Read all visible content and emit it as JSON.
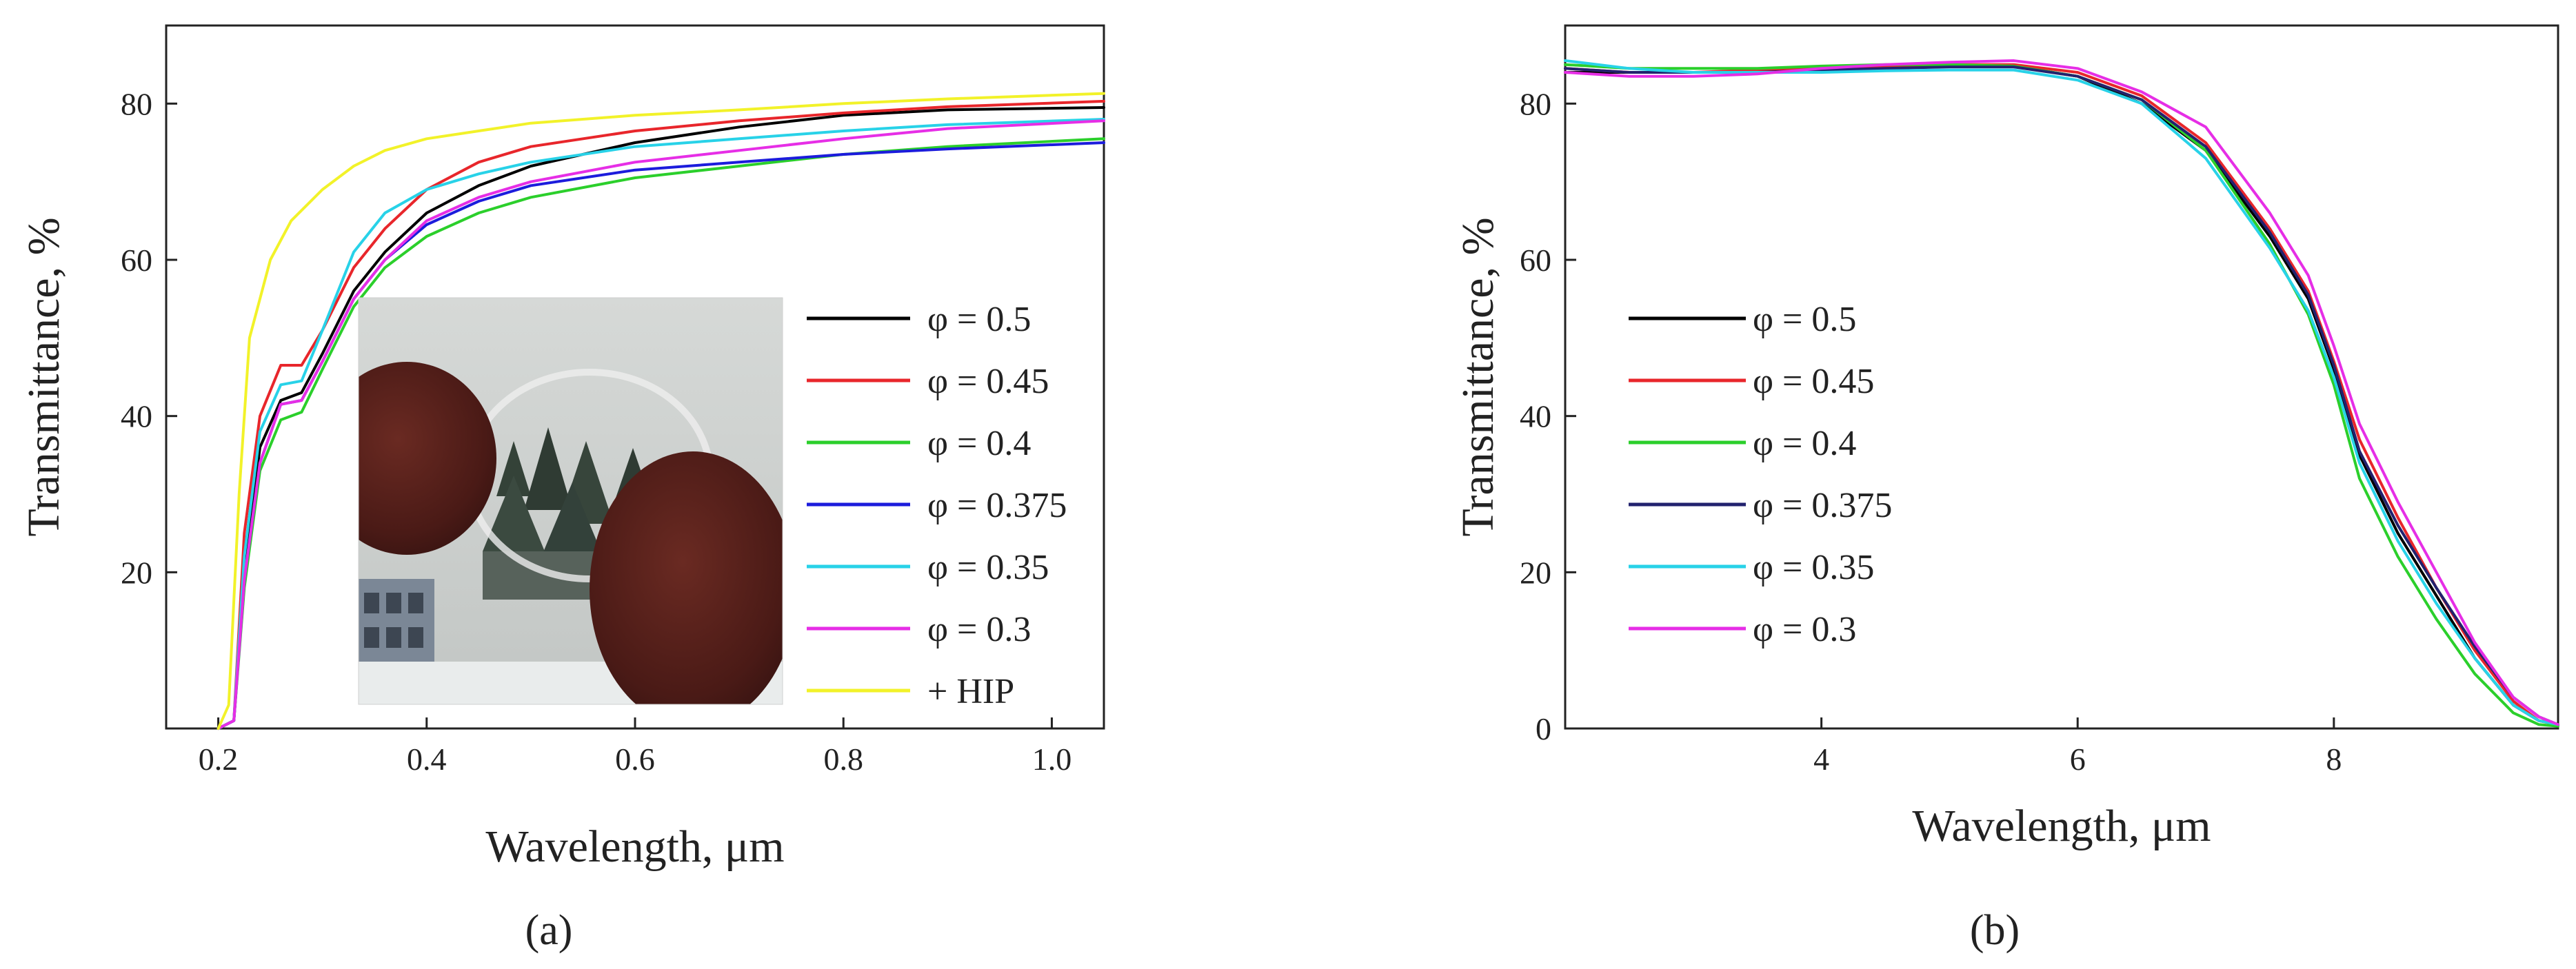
{
  "figure": {
    "panel_a_label": "(a)",
    "panel_b_label": "(b)",
    "inset_photo": "photo of transparent ceramic disc held between fingers, snowy fir trees behind"
  },
  "chart_data": [
    {
      "type": "line",
      "panel": "a",
      "title": "",
      "xlabel": "Wavelength, μm",
      "ylabel": "Transmittance, %",
      "xlim": [
        0.15,
        1.05
      ],
      "ylim": [
        0,
        90
      ],
      "xticks": [
        0.2,
        0.4,
        0.6,
        0.8,
        1.0
      ],
      "xtick_labels": [
        "0.2",
        "0.4",
        "0.6",
        "0.8",
        "1.0"
      ],
      "yticks": [
        20,
        40,
        60,
        80
      ],
      "ytick_labels": [
        "20",
        "40",
        "60",
        "80"
      ],
      "legend_position": "center-right",
      "series": [
        {
          "name": "φ = 0.5",
          "color": "#000000",
          "x": [
            0.2,
            0.215,
            0.225,
            0.24,
            0.26,
            0.28,
            0.3,
            0.33,
            0.36,
            0.4,
            0.45,
            0.5,
            0.6,
            0.7,
            0.8,
            0.9,
            1.05
          ],
          "y": [
            0,
            1,
            20,
            36,
            42,
            43,
            48,
            56,
            61,
            66,
            69.5,
            72,
            75,
            77,
            78.5,
            79.2,
            79.5
          ]
        },
        {
          "name": "φ = 0.45",
          "color": "#e8262b",
          "x": [
            0.2,
            0.215,
            0.225,
            0.24,
            0.26,
            0.28,
            0.3,
            0.33,
            0.36,
            0.4,
            0.45,
            0.5,
            0.6,
            0.7,
            0.8,
            0.9,
            1.05
          ],
          "y": [
            0,
            1,
            25,
            40,
            46.5,
            46.5,
            51,
            59,
            64,
            69,
            72.5,
            74.5,
            76.5,
            77.8,
            78.8,
            79.6,
            80.3
          ]
        },
        {
          "name": "φ = 0.4",
          "color": "#2bcf2b",
          "x": [
            0.2,
            0.215,
            0.225,
            0.24,
            0.26,
            0.28,
            0.3,
            0.33,
            0.36,
            0.4,
            0.45,
            0.5,
            0.6,
            0.7,
            0.8,
            0.9,
            1.05
          ],
          "y": [
            0,
            1,
            18,
            33,
            39.5,
            40.5,
            46,
            54,
            59,
            63,
            66,
            68,
            70.5,
            72,
            73.5,
            74.5,
            75.5
          ]
        },
        {
          "name": "φ = 0.375",
          "color": "#1c1cdc",
          "x": [
            0.2,
            0.215,
            0.225,
            0.24,
            0.26,
            0.28,
            0.3,
            0.33,
            0.36,
            0.4,
            0.45,
            0.5,
            0.6,
            0.7,
            0.8,
            0.9,
            1.05
          ],
          "y": [
            0,
            1,
            19,
            34,
            41.5,
            42,
            47,
            55,
            60,
            64.5,
            67.5,
            69.5,
            71.5,
            72.5,
            73.5,
            74.2,
            75.0
          ]
        },
        {
          "name": "φ = 0.35",
          "color": "#28d2e8",
          "x": [
            0.2,
            0.215,
            0.225,
            0.24,
            0.26,
            0.28,
            0.3,
            0.33,
            0.36,
            0.4,
            0.45,
            0.5,
            0.6,
            0.7,
            0.8,
            0.9,
            1.05
          ],
          "y": [
            0,
            1,
            22,
            38,
            44,
            44.5,
            51,
            61,
            66,
            69,
            71,
            72.5,
            74.5,
            75.5,
            76.5,
            77.3,
            78.0
          ]
        },
        {
          "name": "φ = 0.3",
          "color": "#e62ee6",
          "x": [
            0.2,
            0.215,
            0.225,
            0.24,
            0.26,
            0.28,
            0.3,
            0.33,
            0.36,
            0.4,
            0.45,
            0.5,
            0.6,
            0.7,
            0.8,
            0.9,
            1.05
          ],
          "y": [
            0,
            1,
            19,
            34,
            41.5,
            42,
            47,
            55,
            60,
            65,
            68,
            70,
            72.5,
            74,
            75.5,
            76.8,
            77.8
          ]
        },
        {
          "name": "+ HIP",
          "color": "#f2f229",
          "x": [
            0.2,
            0.21,
            0.22,
            0.23,
            0.25,
            0.27,
            0.3,
            0.33,
            0.36,
            0.4,
            0.45,
            0.5,
            0.6,
            0.7,
            0.8,
            0.9,
            1.05
          ],
          "y": [
            0,
            3,
            30,
            50,
            60,
            65,
            69,
            72,
            74,
            75.5,
            76.5,
            77.5,
            78.5,
            79.2,
            80,
            80.6,
            81.3
          ]
        }
      ]
    },
    {
      "type": "line",
      "panel": "b",
      "title": "",
      "xlabel": "Wavelength, μm",
      "ylabel": "Transmittance, %",
      "xlim": [
        2.0,
        9.75
      ],
      "ylim": [
        0,
        90
      ],
      "xticks": [
        4,
        6,
        8
      ],
      "xtick_labels": [
        "4",
        "6",
        "8"
      ],
      "yticks": [
        0,
        20,
        40,
        60,
        80
      ],
      "ytick_labels": [
        "0",
        "20",
        "40",
        "60",
        "80"
      ],
      "legend_position": "center-left",
      "series": [
        {
          "name": "φ = 0.5",
          "color": "#000000",
          "x": [
            2.0,
            2.5,
            3.0,
            3.5,
            4.0,
            4.5,
            5.0,
            5.5,
            6.0,
            6.5,
            7.0,
            7.5,
            7.8,
            8.0,
            8.2,
            8.5,
            8.8,
            9.1,
            9.4,
            9.6,
            9.75
          ],
          "y": [
            84,
            84,
            84,
            84,
            84.5,
            84.5,
            84.8,
            84.8,
            83.5,
            80,
            74,
            63,
            55,
            46,
            35,
            25,
            17,
            9,
            3,
            1,
            0.5
          ]
        },
        {
          "name": "φ = 0.45",
          "color": "#e8262b",
          "x": [
            2.0,
            2.5,
            3.0,
            3.5,
            4.0,
            4.5,
            5.0,
            5.5,
            6.0,
            6.5,
            7.0,
            7.5,
            7.8,
            8.0,
            8.2,
            8.5,
            8.8,
            9.1,
            9.4,
            9.6,
            9.75
          ],
          "y": [
            84.5,
            84,
            84,
            84.3,
            84.5,
            84.8,
            85,
            85,
            84,
            81,
            75,
            64,
            56,
            47,
            37,
            27,
            18,
            10,
            3.5,
            1,
            0.5
          ]
        },
        {
          "name": "φ = 0.4",
          "color": "#2bcf2b",
          "x": [
            2.0,
            2.5,
            3.0,
            3.5,
            4.0,
            4.5,
            5.0,
            5.5,
            6.0,
            6.5,
            7.0,
            7.5,
            7.8,
            8.0,
            8.2,
            8.5,
            8.8,
            9.1,
            9.4,
            9.6,
            9.75
          ],
          "y": [
            85,
            84.5,
            84.5,
            84.5,
            84.8,
            85,
            85,
            84.8,
            83.5,
            80.5,
            74,
            62,
            53,
            44,
            32,
            22,
            14,
            7,
            2,
            0.5,
            0.3
          ]
        },
        {
          "name": "φ = 0.375",
          "color": "#22226e",
          "x": [
            2.0,
            2.5,
            3.0,
            3.5,
            4.0,
            4.5,
            5.0,
            5.5,
            6.0,
            6.5,
            7.0,
            7.5,
            7.8,
            8.0,
            8.2,
            8.5,
            8.8,
            9.1,
            9.4,
            9.6,
            9.75
          ],
          "y": [
            84.5,
            84,
            84,
            84,
            84.3,
            84.5,
            84.7,
            84.7,
            83.5,
            80.5,
            74.5,
            63.5,
            55.5,
            46.5,
            35.5,
            26,
            18,
            10.5,
            4,
            1.5,
            0.5
          ]
        },
        {
          "name": "φ = 0.35",
          "color": "#28d2e8",
          "x": [
            2.0,
            2.5,
            3.0,
            3.5,
            4.0,
            4.5,
            5.0,
            5.5,
            6.0,
            6.5,
            7.0,
            7.5,
            7.8,
            8.0,
            8.2,
            8.5,
            8.8,
            9.1,
            9.4,
            9.6,
            9.75
          ],
          "y": [
            85.5,
            84.5,
            84,
            84,
            84,
            84.2,
            84.3,
            84.3,
            83,
            80,
            73,
            61.5,
            53.5,
            45,
            34,
            24,
            16,
            9,
            3,
            1,
            0.5
          ]
        },
        {
          "name": "φ = 0.3",
          "color": "#e62ee6",
          "x": [
            2.0,
            2.5,
            3.0,
            3.5,
            4.0,
            4.5,
            5.0,
            5.5,
            6.0,
            6.5,
            7.0,
            7.5,
            7.8,
            8.0,
            8.2,
            8.5,
            8.8,
            9.1,
            9.4,
            9.6,
            9.75
          ],
          "y": [
            84,
            83.5,
            83.5,
            83.8,
            84.5,
            85,
            85.3,
            85.5,
            84.5,
            81.5,
            77,
            66,
            58,
            49,
            39,
            29,
            20,
            11,
            4,
            1.5,
            0.5
          ]
        }
      ]
    }
  ]
}
